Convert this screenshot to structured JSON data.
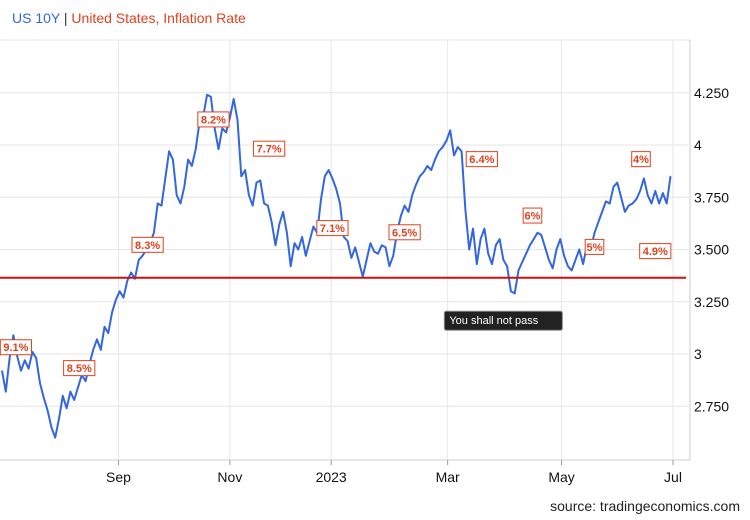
{
  "legend": {
    "series_1": "US 10Y",
    "separator": "|",
    "series_2": "United States, Inflation Rate"
  },
  "source": "source: tradingeconomics.com",
  "chart_data": {
    "type": "line",
    "title": "US 10Y | United States, Inflation Rate",
    "ylim": [
      2.5,
      4.5
    ],
    "xlim": [
      0,
      26.5
    ],
    "y_ticks": [
      2.75,
      3,
      3.25,
      3.5,
      3.75,
      4,
      4.25
    ],
    "y_tick_labels": [
      "2.750",
      "3",
      "3.250",
      "3.500",
      "3.750",
      "4",
      "4.250"
    ],
    "x_ticks": [
      4.6,
      9.0,
      13.0,
      17.6,
      22.1,
      26.5
    ],
    "x_tick_labels": [
      "Sep",
      "Nov",
      "2023",
      "Mar",
      "May",
      "Jul"
    ],
    "grid": true,
    "series": [
      {
        "name": "US 10Y",
        "color": "#3366e0",
        "points": [
          [
            0.0,
            2.92
          ],
          [
            0.15,
            2.82
          ],
          [
            0.3,
            2.98
          ],
          [
            0.45,
            3.09
          ],
          [
            0.6,
            2.99
          ],
          [
            0.75,
            2.92
          ],
          [
            0.9,
            2.97
          ],
          [
            1.05,
            2.93
          ],
          [
            1.2,
            3.01
          ],
          [
            1.35,
            2.98
          ],
          [
            1.5,
            2.86
          ],
          [
            1.65,
            2.79
          ],
          [
            1.8,
            2.73
          ],
          [
            1.95,
            2.65
          ],
          [
            2.1,
            2.6
          ],
          [
            2.25,
            2.69
          ],
          [
            2.4,
            2.8
          ],
          [
            2.55,
            2.74
          ],
          [
            2.7,
            2.82
          ],
          [
            2.85,
            2.78
          ],
          [
            3.0,
            2.84
          ],
          [
            3.15,
            2.9
          ],
          [
            3.3,
            2.87
          ],
          [
            3.45,
            2.95
          ],
          [
            3.6,
            3.02
          ],
          [
            3.75,
            3.07
          ],
          [
            3.9,
            3.02
          ],
          [
            4.05,
            3.13
          ],
          [
            4.2,
            3.1
          ],
          [
            4.35,
            3.2
          ],
          [
            4.5,
            3.26
          ],
          [
            4.65,
            3.3
          ],
          [
            4.8,
            3.27
          ],
          [
            4.95,
            3.35
          ],
          [
            5.1,
            3.39
          ],
          [
            5.25,
            3.36
          ],
          [
            5.4,
            3.45
          ],
          [
            5.55,
            3.47
          ],
          [
            5.7,
            3.5
          ],
          [
            5.85,
            3.53
          ],
          [
            6.0,
            3.58
          ],
          [
            6.15,
            3.72
          ],
          [
            6.3,
            3.71
          ],
          [
            6.45,
            3.84
          ],
          [
            6.6,
            3.97
          ],
          [
            6.75,
            3.93
          ],
          [
            6.9,
            3.76
          ],
          [
            7.05,
            3.72
          ],
          [
            7.2,
            3.8
          ],
          [
            7.35,
            3.93
          ],
          [
            7.5,
            3.9
          ],
          [
            7.65,
            3.98
          ],
          [
            7.8,
            4.11
          ],
          [
            7.95,
            4.14
          ],
          [
            8.1,
            4.24
          ],
          [
            8.25,
            4.23
          ],
          [
            8.4,
            4.08
          ],
          [
            8.55,
            3.98
          ],
          [
            8.7,
            4.08
          ],
          [
            8.85,
            4.06
          ],
          [
            9.0,
            4.13
          ],
          [
            9.15,
            4.22
          ],
          [
            9.3,
            4.12
          ],
          [
            9.45,
            3.85
          ],
          [
            9.6,
            3.88
          ],
          [
            9.75,
            3.76
          ],
          [
            9.9,
            3.71
          ],
          [
            10.05,
            3.82
          ],
          [
            10.2,
            3.83
          ],
          [
            10.35,
            3.72
          ],
          [
            10.5,
            3.71
          ],
          [
            10.65,
            3.63
          ],
          [
            10.8,
            3.52
          ],
          [
            10.95,
            3.62
          ],
          [
            11.1,
            3.68
          ],
          [
            11.25,
            3.58
          ],
          [
            11.4,
            3.42
          ],
          [
            11.55,
            3.53
          ],
          [
            11.7,
            3.5
          ],
          [
            11.85,
            3.56
          ],
          [
            12.0,
            3.47
          ],
          [
            12.15,
            3.54
          ],
          [
            12.3,
            3.61
          ],
          [
            12.45,
            3.58
          ],
          [
            12.6,
            3.74
          ],
          [
            12.75,
            3.85
          ],
          [
            12.9,
            3.88
          ],
          [
            13.05,
            3.84
          ],
          [
            13.2,
            3.79
          ],
          [
            13.35,
            3.72
          ],
          [
            13.5,
            3.56
          ],
          [
            13.65,
            3.54
          ],
          [
            13.8,
            3.46
          ],
          [
            13.95,
            3.51
          ],
          [
            14.1,
            3.44
          ],
          [
            14.25,
            3.37
          ],
          [
            14.4,
            3.45
          ],
          [
            14.55,
            3.53
          ],
          [
            14.7,
            3.49
          ],
          [
            14.85,
            3.48
          ],
          [
            15.0,
            3.52
          ],
          [
            15.15,
            3.51
          ],
          [
            15.3,
            3.42
          ],
          [
            15.45,
            3.47
          ],
          [
            15.6,
            3.58
          ],
          [
            15.75,
            3.66
          ],
          [
            15.9,
            3.71
          ],
          [
            16.05,
            3.68
          ],
          [
            16.2,
            3.76
          ],
          [
            16.35,
            3.81
          ],
          [
            16.5,
            3.85
          ],
          [
            16.65,
            3.87
          ],
          [
            16.8,
            3.9
          ],
          [
            16.95,
            3.88
          ],
          [
            17.1,
            3.93
          ],
          [
            17.25,
            3.97
          ],
          [
            17.4,
            3.99
          ],
          [
            17.55,
            4.02
          ],
          [
            17.7,
            4.07
          ],
          [
            17.85,
            3.95
          ],
          [
            18.0,
            3.99
          ],
          [
            18.15,
            3.97
          ],
          [
            18.3,
            3.69
          ],
          [
            18.45,
            3.5
          ],
          [
            18.6,
            3.6
          ],
          [
            18.75,
            3.43
          ],
          [
            18.9,
            3.55
          ],
          [
            19.05,
            3.6
          ],
          [
            19.2,
            3.48
          ],
          [
            19.35,
            3.43
          ],
          [
            19.5,
            3.52
          ],
          [
            19.65,
            3.55
          ],
          [
            19.8,
            3.45
          ],
          [
            19.95,
            3.42
          ],
          [
            20.1,
            3.3
          ],
          [
            20.25,
            3.29
          ],
          [
            20.4,
            3.4
          ],
          [
            20.55,
            3.44
          ],
          [
            20.7,
            3.48
          ],
          [
            20.85,
            3.52
          ],
          [
            21.0,
            3.55
          ],
          [
            21.15,
            3.58
          ],
          [
            21.3,
            3.57
          ],
          [
            21.45,
            3.51
          ],
          [
            21.6,
            3.45
          ],
          [
            21.75,
            3.41
          ],
          [
            21.9,
            3.5
          ],
          [
            22.05,
            3.55
          ],
          [
            22.2,
            3.47
          ],
          [
            22.35,
            3.42
          ],
          [
            22.5,
            3.4
          ],
          [
            22.65,
            3.45
          ],
          [
            22.8,
            3.5
          ],
          [
            22.95,
            3.43
          ],
          [
            23.1,
            3.52
          ],
          [
            23.25,
            3.5
          ],
          [
            23.4,
            3.58
          ],
          [
            23.55,
            3.63
          ],
          [
            23.7,
            3.68
          ],
          [
            23.85,
            3.73
          ],
          [
            24.0,
            3.72
          ],
          [
            24.15,
            3.8
          ],
          [
            24.3,
            3.82
          ],
          [
            24.45,
            3.75
          ],
          [
            24.6,
            3.68
          ],
          [
            24.75,
            3.71
          ],
          [
            24.9,
            3.72
          ],
          [
            25.05,
            3.74
          ],
          [
            25.2,
            3.78
          ],
          [
            25.35,
            3.84
          ],
          [
            25.5,
            3.76
          ],
          [
            25.65,
            3.72
          ],
          [
            25.8,
            3.78
          ],
          [
            25.95,
            3.72
          ],
          [
            26.1,
            3.77
          ],
          [
            26.25,
            3.72
          ],
          [
            26.4,
            3.85
          ]
        ]
      },
      {
        "name": "United States, Inflation Rate",
        "color": "#cc1111",
        "type": "threshold",
        "value": 3.365
      }
    ],
    "annotations": [
      {
        "x": 0.55,
        "y": 3.03,
        "label": "9.1%"
      },
      {
        "x": 3.05,
        "y": 2.93,
        "label": "8.5%"
      },
      {
        "x": 5.75,
        "y": 3.52,
        "label": "8.3%"
      },
      {
        "x": 8.35,
        "y": 4.12,
        "label": "8.2%"
      },
      {
        "x": 10.55,
        "y": 3.98,
        "label": "7.7%"
      },
      {
        "x": 13.05,
        "y": 3.6,
        "label": "7.1%"
      },
      {
        "x": 15.9,
        "y": 3.58,
        "label": "6.5%"
      },
      {
        "x": 18.95,
        "y": 3.93,
        "label": "6.4%"
      },
      {
        "x": 20.95,
        "y": 3.66,
        "label": "6%"
      },
      {
        "x": 23.4,
        "y": 3.51,
        "label": "5%"
      },
      {
        "x": 25.8,
        "y": 3.49,
        "label": "4.9%"
      },
      {
        "x": 28.6,
        "y": 3.93,
        "label": "4%"
      }
    ],
    "tooltip": {
      "x": 19.8,
      "y": 3.2,
      "label": "You shall not pass"
    }
  }
}
